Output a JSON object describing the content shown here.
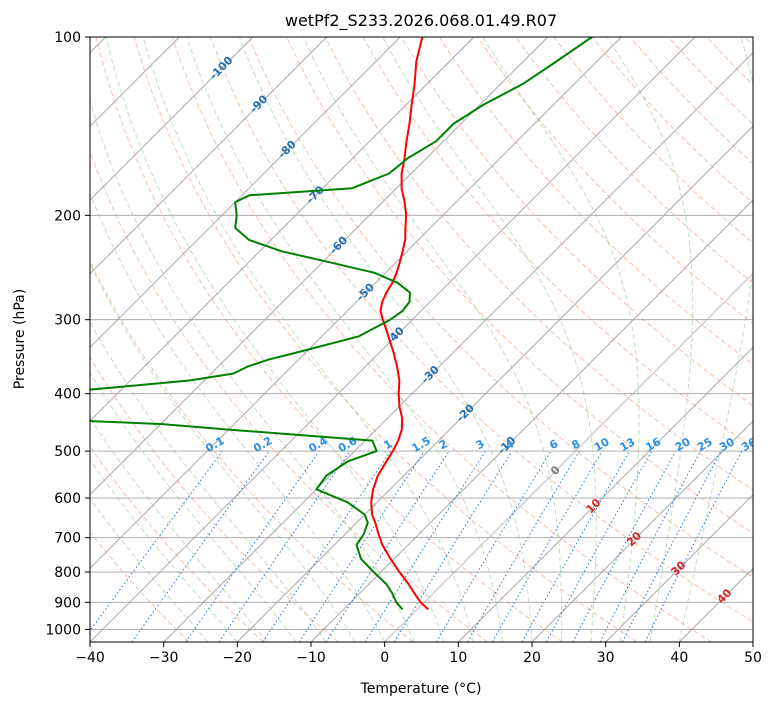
{
  "chart_data": {
    "type": "line",
    "title": "wetPf2_S233.2026.068.01.49.R07",
    "xlabel": "Temperature (°C)",
    "ylabel": "Pressure (hPa)",
    "xlim": [
      -40,
      50
    ],
    "ylim": [
      1050,
      100
    ],
    "y_scale": "log",
    "skew_degrees": 45,
    "x_ticks": [
      -40,
      -30,
      -20,
      -10,
      0,
      10,
      20,
      30,
      40,
      50
    ],
    "y_ticks": [
      100,
      200,
      300,
      400,
      500,
      600,
      700,
      800,
      900,
      1000
    ],
    "grid": true,
    "series": [
      {
        "color": "#ff0000",
        "pressure": [
          925,
          900,
          870,
          840,
          800,
          760,
          720,
          690,
          660,
          640,
          610,
          580,
          550,
          520,
          500,
          480,
          460,
          440,
          420,
          400,
          380,
          360,
          340,
          320,
          300,
          290,
          280,
          270,
          260,
          250,
          240,
          230,
          220,
          210,
          200,
          190,
          180,
          170,
          160,
          150,
          140,
          130,
          120,
          110,
          100
        ],
        "temperature": [
          1.5,
          -0.5,
          -2.5,
          -4.5,
          -7.5,
          -10.5,
          -13.5,
          -15.5,
          -17.5,
          -19,
          -20.8,
          -22.3,
          -23.5,
          -24.3,
          -24.8,
          -25.5,
          -26.5,
          -28,
          -30,
          -31.8,
          -33.5,
          -35.7,
          -38.2,
          -41,
          -44,
          -45.5,
          -46.5,
          -47.2,
          -47.7,
          -48.5,
          -49.5,
          -50.6,
          -51.8,
          -53.4,
          -55,
          -57,
          -59.3,
          -61.3,
          -63,
          -65,
          -67,
          -69.3,
          -71.7,
          -74.5,
          -77
        ]
      },
      {
        "color": "#008000",
        "pressure": [
          925,
          900,
          870,
          840,
          800,
          760,
          720,
          690,
          660,
          640,
          610,
          580,
          550,
          520,
          500,
          480,
          460,
          450,
          440,
          420,
          400,
          390,
          380,
          370,
          360,
          350,
          340,
          320,
          300,
          290,
          280,
          270,
          260,
          250,
          240,
          230,
          220,
          210,
          200,
          195,
          190,
          185,
          180,
          170,
          160,
          150,
          140,
          130,
          120,
          110,
          100
        ],
        "temperature": [
          -2,
          -3.8,
          -5.5,
          -7.5,
          -11,
          -14.5,
          -17,
          -17.5,
          -18.5,
          -20,
          -24,
          -30,
          -30.5,
          -29.5,
          -27,
          -29,
          -50,
          -60,
          -80,
          -82,
          -80,
          -71,
          -62,
          -57,
          -56,
          -54,
          -51,
          -45,
          -43,
          -42.5,
          -42.8,
          -44,
          -47,
          -51.5,
          -59,
          -67,
          -73,
          -76.5,
          -78,
          -79,
          -80,
          -79,
          -66,
          -63,
          -62.5,
          -61,
          -61,
          -59.5,
          -57,
          -55.5,
          -54
        ]
      }
    ],
    "isotherm_labels": [
      {
        "text": "-100",
        "T": -100,
        "p": 113
      },
      {
        "text": "-90",
        "T": -90,
        "p": 130
      },
      {
        "text": "-80",
        "T": -80,
        "p": 155
      },
      {
        "text": "-70",
        "T": -70,
        "p": 185
      },
      {
        "text": "-60",
        "T": -60,
        "p": 225
      },
      {
        "text": "-50",
        "T": -50,
        "p": 270
      },
      {
        "text": "-40",
        "T": -40,
        "p": 320
      },
      {
        "text": "-30",
        "T": -30,
        "p": 372
      },
      {
        "text": "-20",
        "T": -20,
        "p": 432
      },
      {
        "text": "-10",
        "T": -10,
        "p": 490
      },
      {
        "text": "0",
        "T": 0,
        "p": 540
      },
      {
        "text": "10",
        "T": 10,
        "p": 620
      },
      {
        "text": "20",
        "T": 20,
        "p": 705
      },
      {
        "text": "30",
        "T": 30,
        "p": 790
      },
      {
        "text": "40",
        "T": 40,
        "p": 880
      }
    ],
    "mixing_ratio_labels": [
      "0.1",
      "0.2",
      "0.4",
      "0.6",
      "1",
      "1.5",
      "2",
      "3",
      "4",
      "6",
      "8",
      "10",
      "13",
      "16",
      "20",
      "25",
      "30",
      "36"
    ],
    "mixing_ratio_label_x": [
      -23,
      -16.5,
      -9,
      -5,
      0.5,
      5,
      8,
      13,
      17,
      23,
      26,
      29.5,
      33,
      36.5,
      40.5,
      43.5,
      46.5,
      49.5
    ]
  }
}
